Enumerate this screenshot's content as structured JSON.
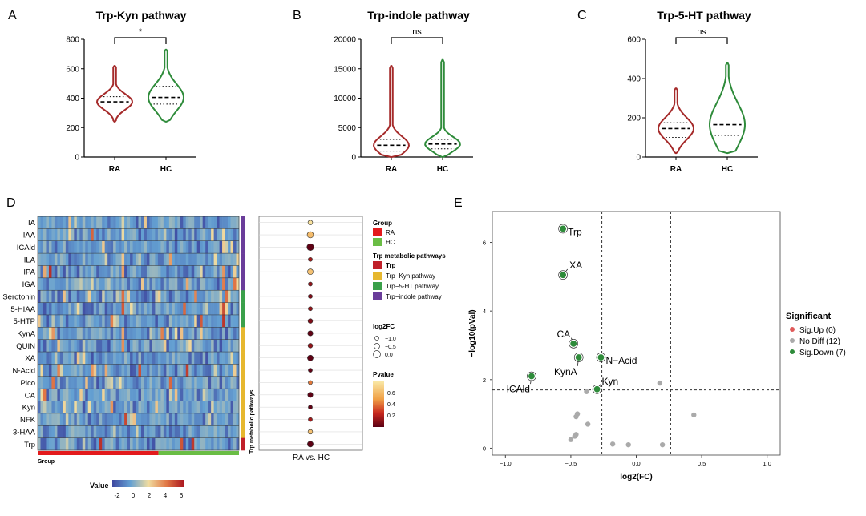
{
  "colors": {
    "ra": "#a52a2a",
    "hc": "#2e8b3a",
    "group_ra": "#e31a1c",
    "group_hc": "#6abd45",
    "path_trp": "#c0202a",
    "path_kyn": "#e6b72e",
    "path_5ht": "#3aa04a",
    "path_indole": "#6a3d9a",
    "sig_up": "#e05a5a",
    "no_diff": "#aaaaaa",
    "sig_down": "#2e8b3a"
  },
  "chart_data": [
    {
      "panel": "A",
      "type": "violin",
      "title": "Trp-Kyn pathway",
      "categories": [
        "RA",
        "HC"
      ],
      "ylim": [
        0,
        800
      ],
      "yticks": [
        "0",
        "200",
        "400",
        "600",
        "800"
      ],
      "medians": [
        375,
        405
      ],
      "quartiles": [
        [
          340,
          410
        ],
        [
          360,
          480
        ]
      ],
      "ranges": [
        [
          240,
          620
        ],
        [
          240,
          730
        ]
      ],
      "significance": "*"
    },
    {
      "panel": "B",
      "type": "violin",
      "title": "Trp-indole pathway",
      "categories": [
        "RA",
        "HC"
      ],
      "ylim": [
        0,
        20000
      ],
      "yticks": [
        "0",
        "5000",
        "10000",
        "15000",
        "20000"
      ],
      "medians": [
        2000,
        2200
      ],
      "quartiles": [
        [
          1000,
          3000
        ],
        [
          1400,
          3000
        ]
      ],
      "ranges": [
        [
          0,
          15500
        ],
        [
          0,
          16500
        ]
      ],
      "significance": "ns"
    },
    {
      "panel": "C",
      "type": "violin",
      "title": "Trp-5-HT pathway",
      "categories": [
        "RA",
        "HC"
      ],
      "ylim": [
        0,
        600
      ],
      "yticks": [
        "0",
        "200",
        "400",
        "600"
      ],
      "medians": [
        145,
        165
      ],
      "quartiles": [
        [
          100,
          175
        ],
        [
          110,
          255
        ]
      ],
      "ranges": [
        [
          20,
          350
        ],
        [
          20,
          480
        ]
      ],
      "significance": "ns"
    },
    {
      "panel": "D",
      "type": "heatmap",
      "rows": [
        "IA",
        "IAA",
        "ICAld",
        "ILA",
        "IPA",
        "IGA",
        "Serotonin",
        "5-HIAA",
        "5-HTP",
        "KynA",
        "QUIN",
        "XA",
        "N-Acid",
        "Pico",
        "CA",
        "Kyn",
        "NFK",
        "3-HAA",
        "Trp"
      ],
      "row_pathways": [
        "indole",
        "indole",
        "indole",
        "indole",
        "indole",
        "indole",
        "5ht",
        "5ht",
        "5ht",
        "kyn",
        "kyn",
        "kyn",
        "kyn",
        "kyn",
        "kyn",
        "kyn",
        "kyn",
        "kyn",
        "trp"
      ],
      "value_range": [
        -2,
        6
      ],
      "colorbar_ticks": [
        "-2",
        "0",
        "2",
        "4",
        "6"
      ],
      "colorbar_title": "Value",
      "group_label": "Group",
      "pathway_axis_label": "Trp metabolic pathways",
      "legend_group_title": "Group",
      "legend_groups": [
        "RA",
        "HC"
      ],
      "legend_path_title": "Trp metabolic pathways",
      "legend_paths": [
        "Trp",
        "Trp−Kyn pathway",
        "Trp−5-HT pathway",
        "Trp−indole pathway"
      ],
      "dot_xlabel": "RA vs. HC",
      "dot_log2fc": [
        -0.4,
        -0.7,
        -0.8,
        -0.3,
        -0.6,
        -0.3,
        -0.3,
        -0.3,
        -0.4,
        -0.5,
        -0.4,
        -0.6,
        -0.3,
        -0.3,
        -0.5,
        -0.3,
        -0.3,
        -0.4,
        -0.6
      ],
      "dot_pvalue": [
        0.95,
        0.75,
        0.01,
        0.2,
        0.78,
        0.15,
        0.1,
        0.15,
        0.1,
        0.02,
        0.15,
        0.01,
        0.02,
        0.5,
        0.01,
        0.02,
        0.2,
        0.78,
        0.01
      ],
      "size_legend_title": "log2FC",
      "size_legend": [
        "−1.0",
        "−0.5",
        "0.0"
      ],
      "pvalue_legend_title": "Pvalue",
      "pvalue_ticks": [
        "0.6",
        "0.4",
        "0.2"
      ]
    },
    {
      "panel": "E",
      "type": "scatter",
      "xlabel": "log2(FC)",
      "ylabel": "−log10(pVal)",
      "xlim": [
        -1.1,
        1.1
      ],
      "ylim": [
        -0.2,
        6.9
      ],
      "xticks": [
        "−1.0",
        "−0.5",
        "0.0",
        "0.5",
        "1.0"
      ],
      "yticks": [
        "0",
        "2",
        "4",
        "6"
      ],
      "vlines": [
        -0.263,
        0.263
      ],
      "hline": 1.7,
      "legend_title": "Significant",
      "legend": [
        "Sig.Up (0)",
        "No Diff (12)",
        "Sig.Down (7)"
      ],
      "down_points": [
        {
          "label": "Trp",
          "x": -0.56,
          "y": 6.4
        },
        {
          "label": "XA",
          "x": -0.56,
          "y": 5.05
        },
        {
          "label": "CA",
          "x": -0.48,
          "y": 3.05
        },
        {
          "label": "N−Acid",
          "x": -0.27,
          "y": 2.65
        },
        {
          "label": "KynA",
          "x": -0.44,
          "y": 2.65
        },
        {
          "label": "ICAld",
          "x": -0.8,
          "y": 2.1
        },
        {
          "label": "Kyn",
          "x": -0.3,
          "y": 1.72
        }
      ],
      "nodiff_points": [
        {
          "x": 0.18,
          "y": 1.9
        },
        {
          "x": -0.38,
          "y": 1.65
        },
        {
          "x": -0.45,
          "y": 1.0
        },
        {
          "x": -0.46,
          "y": 0.92
        },
        {
          "x": -0.37,
          "y": 0.7
        },
        {
          "x": -0.46,
          "y": 0.4
        },
        {
          "x": -0.47,
          "y": 0.35
        },
        {
          "x": -0.18,
          "y": 0.12
        },
        {
          "x": -0.06,
          "y": 0.1
        },
        {
          "x": 0.2,
          "y": 0.1
        },
        {
          "x": 0.44,
          "y": 0.97
        },
        {
          "x": -0.5,
          "y": 0.25
        }
      ]
    }
  ],
  "panel_labels": [
    "A",
    "B",
    "C",
    "D",
    "E"
  ]
}
